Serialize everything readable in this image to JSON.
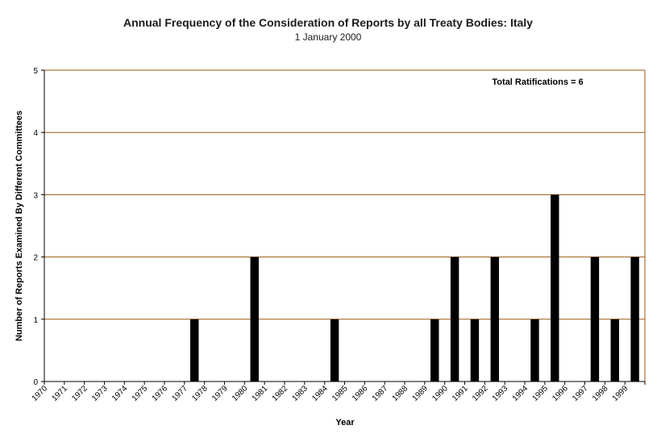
{
  "chart_data": {
    "type": "bar",
    "title": "Annual Frequency of the Consideration of Reports by all Treaty Bodies: Italy",
    "subtitle": "1 January 2000",
    "xlabel": "Year",
    "ylabel": "Number of Reports Examined By Different Committees",
    "annotation": "Total Ratifications = 6",
    "ylim": [
      0,
      5
    ],
    "yticks": [
      0,
      1,
      2,
      3,
      4,
      5
    ],
    "grid": true,
    "categories": [
      "1970",
      "1971",
      "1972",
      "1973",
      "1974",
      "1975",
      "1976",
      "1977",
      "1978",
      "1979",
      "1980",
      "1981",
      "1982",
      "1983",
      "1984",
      "1985",
      "1986",
      "1987",
      "1988",
      "1989",
      "1990",
      "1991",
      "1992",
      "1993",
      "1994",
      "1995",
      "1996",
      "1997",
      "1998",
      "1999"
    ],
    "values": [
      0,
      0,
      0,
      0,
      0,
      0,
      0,
      1,
      0,
      0,
      2,
      0,
      0,
      0,
      1,
      0,
      0,
      0,
      0,
      1,
      2,
      1,
      2,
      0,
      1,
      3,
      0,
      2,
      1,
      2
    ],
    "colors": {
      "bar": "#000000",
      "grid": "#9b5a12",
      "axis": "#000000"
    }
  }
}
